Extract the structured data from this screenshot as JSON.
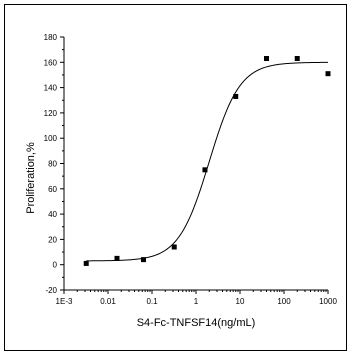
{
  "chart_data": {
    "type": "scatter",
    "title": "",
    "xlabel": "S4-Fc-TNFSF14(ng/mL)",
    "ylabel": "Proliferation,%",
    "xscale": "log",
    "xlim": [
      0.001,
      1000
    ],
    "ylim": [
      -20,
      180
    ],
    "xticks": [
      0.001,
      0.01,
      0.1,
      1,
      10,
      100,
      1000
    ],
    "xtick_labels": [
      "1E-3",
      "0.01",
      "0.1",
      "1",
      "10",
      "100",
      "1000"
    ],
    "yticks": [
      -20,
      0,
      20,
      40,
      60,
      80,
      100,
      120,
      140,
      160,
      180
    ],
    "ytick_labels": [
      "-20",
      "0",
      "20",
      "40",
      "60",
      "80",
      "100",
      "120",
      "140",
      "160",
      "180"
    ],
    "grid": false,
    "legend": "none",
    "series": [
      {
        "values": [
          {
            "x": 0.0032,
            "y": 1
          },
          {
            "x": 0.016,
            "y": 5
          },
          {
            "x": 0.064,
            "y": 4
          },
          {
            "x": 0.32,
            "y": 14
          },
          {
            "x": 1.6,
            "y": 75
          },
          {
            "x": 8,
            "y": 133
          },
          {
            "x": 40,
            "y": 163
          },
          {
            "x": 200,
            "y": 163
          },
          {
            "x": 1000,
            "y": 151
          }
        ],
        "marker": "square",
        "color": "#000000"
      }
    ],
    "fit_curve": {
      "model": "4PL",
      "bottom": 3,
      "top": 160,
      "ec50": 2.0,
      "hill": 1.25,
      "x_range": [
        0.0032,
        1000
      ],
      "color": "#000000"
    }
  }
}
